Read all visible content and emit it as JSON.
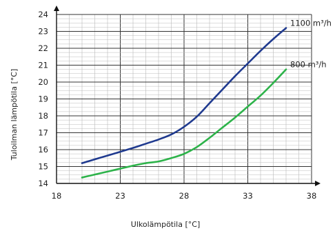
{
  "chart_data": {
    "type": "line",
    "title": "",
    "xlabel": "Ulkolämpötila  [°C]",
    "ylabel": "Tuloilman lämpötila   [°C]",
    "xlim": [
      18,
      38
    ],
    "ylim": [
      14,
      24
    ],
    "x_ticks": [
      18,
      23,
      28,
      33,
      38
    ],
    "y_ticks": [
      14,
      15,
      16,
      17,
      18,
      19,
      20,
      21,
      22,
      23,
      24
    ],
    "grid": true,
    "series": [
      {
        "label": "1100 m³/h",
        "color": "#1f3a8f",
        "points": [
          [
            20,
            15.2
          ],
          [
            22,
            15.65
          ],
          [
            24,
            16.1
          ],
          [
            25,
            16.35
          ],
          [
            26,
            16.6
          ],
          [
            27,
            16.9
          ],
          [
            28,
            17.35
          ],
          [
            29,
            17.95
          ],
          [
            30,
            18.75
          ],
          [
            31,
            19.55
          ],
          [
            32,
            20.35
          ],
          [
            33,
            21.1
          ],
          [
            34,
            21.85
          ],
          [
            35,
            22.55
          ],
          [
            36,
            23.2
          ]
        ]
      },
      {
        "label": "800 m³/h",
        "color": "#2db34a",
        "points": [
          [
            20,
            14.35
          ],
          [
            22,
            14.7
          ],
          [
            24,
            15.05
          ],
          [
            25,
            15.2
          ],
          [
            26,
            15.3
          ],
          [
            27,
            15.5
          ],
          [
            28,
            15.75
          ],
          [
            29,
            16.15
          ],
          [
            30,
            16.7
          ],
          [
            31,
            17.3
          ],
          [
            32,
            17.9
          ],
          [
            33,
            18.55
          ],
          [
            34,
            19.2
          ],
          [
            35,
            19.95
          ],
          [
            36,
            20.75
          ]
        ]
      }
    ]
  }
}
